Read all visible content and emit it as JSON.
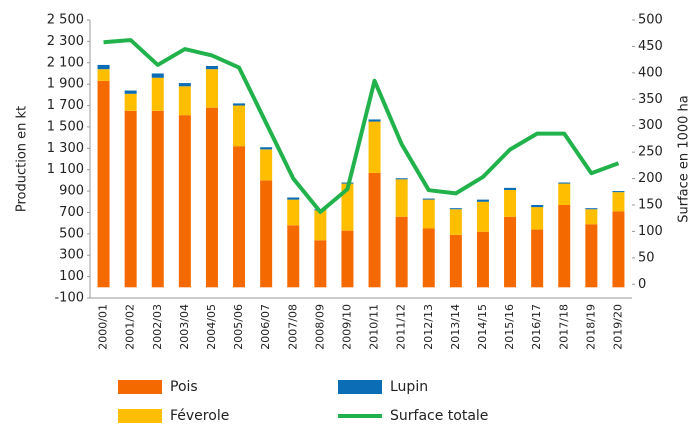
{
  "chart_data": {
    "type": "bar",
    "ylabel": "Production en kt",
    "y2label": "Surface en 1000 ha",
    "categories": [
      "2000/01",
      "2001/02",
      "2002/03",
      "2003/04",
      "2004/05",
      "2005/06",
      "2006/07",
      "2007/08",
      "2008/09",
      "2009/10",
      "2010/11",
      "2011/12",
      "2012/13",
      "2013/14",
      "2014/15",
      "2015/16",
      "2016/17",
      "2017/18",
      "2018/19",
      "2019/20"
    ],
    "series": [
      {
        "name": "Pois",
        "color": "#f56a00",
        "values": [
          1930,
          1650,
          1650,
          1610,
          1680,
          1320,
          1000,
          580,
          440,
          530,
          1070,
          660,
          550,
          490,
          520,
          660,
          540,
          770,
          590,
          710
        ]
      },
      {
        "name": "Féverole",
        "color": "#ffbf00",
        "values": [
          110,
          160,
          310,
          270,
          360,
          380,
          290,
          240,
          280,
          440,
          480,
          350,
          270,
          240,
          280,
          250,
          210,
          200,
          140,
          180
        ]
      },
      {
        "name": "Lupin",
        "color": "#0a6db5",
        "values": [
          40,
          30,
          40,
          30,
          30,
          20,
          20,
          20,
          10,
          10,
          20,
          10,
          10,
          10,
          20,
          20,
          20,
          10,
          10,
          10
        ]
      },
      {
        "name": "Surface totale",
        "color": "#22b24c",
        "type": "line",
        "axis": "y2",
        "values": [
          458,
          462,
          415,
          445,
          433,
          410,
          305,
          200,
          137,
          180,
          385,
          265,
          178,
          172,
          203,
          255,
          285,
          285,
          210,
          229
        ]
      }
    ],
    "ylim": [
      -100,
      2500
    ],
    "yticks": [
      -100,
      100,
      300,
      500,
      700,
      900,
      {
        "value": 1100,
        "label": "1 100"
      },
      {
        "value": 1300,
        "label": "1 300"
      },
      {
        "value": 1500,
        "label": "1 500"
      },
      {
        "value": 1700,
        "label": "1 700"
      },
      {
        "value": 1900,
        "label": "1 900"
      },
      {
        "value": 2100,
        "label": "2 100"
      },
      {
        "value": 2300,
        "label": "2 300"
      },
      {
        "value": 2500,
        "label": "2 500"
      }
    ],
    "y2lim": [
      -26,
      500
    ],
    "y2ticks": [
      0,
      50,
      100,
      150,
      200,
      250,
      300,
      350,
      400,
      450,
      500
    ],
    "stacked": true
  }
}
